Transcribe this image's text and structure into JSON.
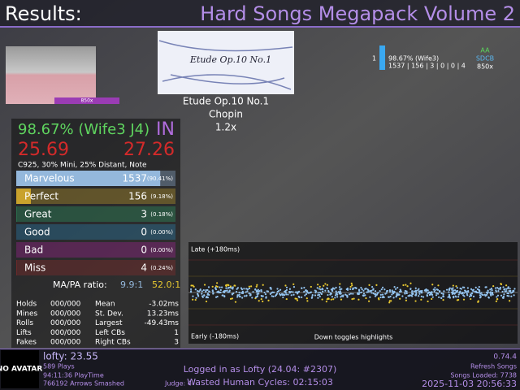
{
  "header": {
    "title": "Results:",
    "pack": "Hard Songs Megapack Volume 2"
  },
  "song": {
    "banner_text": "Etude Op.10 No.1",
    "title": "Etude Op.10 No.1",
    "artist": "Chopin",
    "rate": "1.2x"
  },
  "life_graph": {
    "label": "850x"
  },
  "scoreboard": {
    "rank": "1",
    "score": "98.67% (Wife3)",
    "judgments": "1537 | 156 | 3 | 0 | 0 | 4",
    "grade": "AA",
    "clear": "SDCB",
    "rate": "850x"
  },
  "score": {
    "percent": "98.67% (Wife3 J4)",
    "grade": "IN",
    "ssr": "25.69",
    "msd": "27.26",
    "mods": "C925, 30% Mini, 25% Distant, Note"
  },
  "judgments": [
    {
      "name": "Marvelous",
      "count": 1537,
      "percent": "(90.41%)",
      "color": "#94b8dc"
    },
    {
      "name": "Perfect",
      "count": 156,
      "percent": "(9.18%)",
      "color": "#c9a22c"
    },
    {
      "name": "Great",
      "count": 3,
      "percent": "(0.18%)",
      "color": "#2e9e68"
    },
    {
      "name": "Good",
      "count": 0,
      "percent": "(0.00%)",
      "color": "#2a86b6"
    },
    {
      "name": "Bad",
      "count": 0,
      "percent": "(0.00%)",
      "color": "#a8239a"
    },
    {
      "name": "Miss",
      "count": 4,
      "percent": "(0.24%)",
      "color": "#8e2a2a"
    }
  ],
  "ratio": {
    "label": "MA/PA ratio:",
    "ma": "9.9:1",
    "pa": "52.0:1"
  },
  "stats": {
    "left": [
      [
        "Holds",
        "000/000"
      ],
      [
        "Mines",
        "000/000"
      ],
      [
        "Rolls",
        "000/000"
      ],
      [
        "Lifts",
        "000/000"
      ],
      [
        "Fakes",
        "000/000"
      ]
    ],
    "right": [
      [
        "Mean",
        "-3.02ms"
      ],
      [
        "St. Dev.",
        "13.23ms"
      ],
      [
        "Largest",
        "-49.43ms"
      ],
      [
        "Left CBs",
        "1"
      ],
      [
        "Right CBs",
        "3"
      ]
    ]
  },
  "offset_plot": {
    "late": "Late (+180ms)",
    "early": "Early (-180ms)",
    "hint": "Down toggles highlights"
  },
  "footer": {
    "avatar": "NO AVATAR",
    "player": "lofty: 23.55",
    "plays": "589 Plays",
    "playtime": "94:11:36 PlayTime",
    "arrows": "766192 Arrows Smashed",
    "judge": "Judge: 4",
    "login": "Logged in as Lofty (24.04: #2307)",
    "session": "Wasted Human Cycles: 02:15:03",
    "version": "0.74.4",
    "refresh": "Refresh Songs",
    "songs": "Songs Loaded: 7738",
    "datetime": "2025-11-03 20:56:33"
  }
}
